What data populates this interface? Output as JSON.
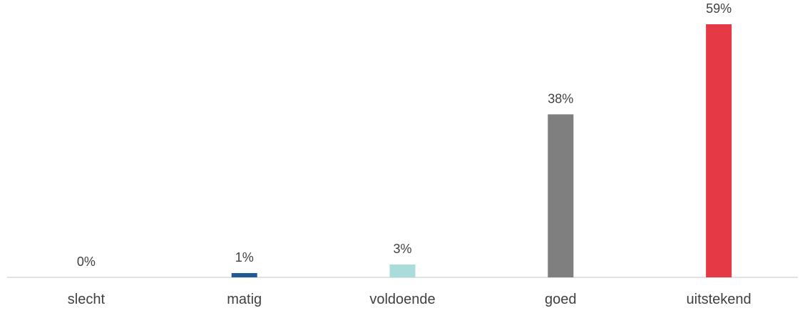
{
  "chart_data": {
    "type": "bar",
    "categories": [
      "slecht",
      "matig",
      "voldoende",
      "goed",
      "uitstekend"
    ],
    "values": [
      0,
      1,
      3,
      38,
      59
    ],
    "value_labels": [
      "0%",
      "1%",
      "3%",
      "38%",
      "59%"
    ],
    "colors": [
      "#1F5A96",
      "#1F5A96",
      "#A9DCDA",
      "#7F7F7F",
      "#E63946"
    ],
    "axis_color": "#D9D9D9",
    "title": "",
    "xlabel": "",
    "ylabel": "",
    "ylim": [
      0,
      60
    ],
    "grid": false,
    "legend": "none"
  }
}
